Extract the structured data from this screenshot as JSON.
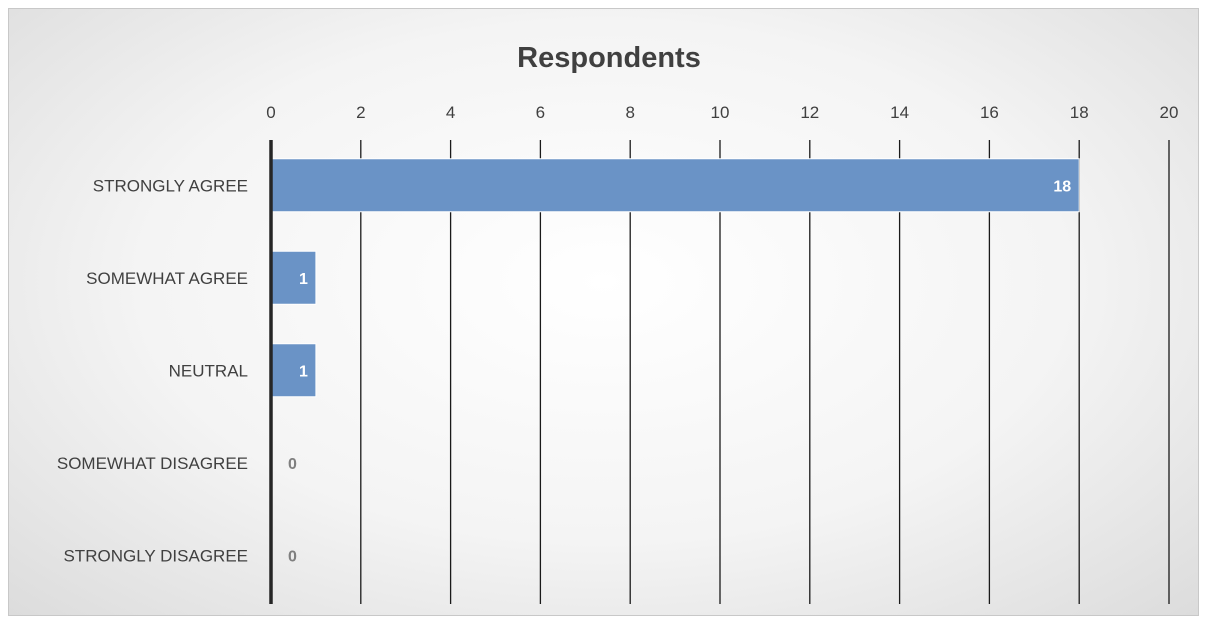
{
  "chart_data": {
    "type": "bar",
    "orientation": "horizontal",
    "title": "Respondents",
    "categories": [
      "STRONGLY AGREE",
      "SOMEWHAT AGREE",
      "NEUTRAL",
      "SOMEWHAT DISAGREE",
      "STRONGLY DISAGREE"
    ],
    "values": [
      18,
      1,
      1,
      0,
      0
    ],
    "xlim": [
      0,
      20
    ],
    "x_ticks": [
      0,
      2,
      4,
      6,
      8,
      10,
      12,
      14,
      16,
      18,
      20
    ],
    "x_axis_position": "top",
    "grid": true,
    "legend": "none",
    "bar_color": "#6a93c6",
    "data_labels": true
  }
}
